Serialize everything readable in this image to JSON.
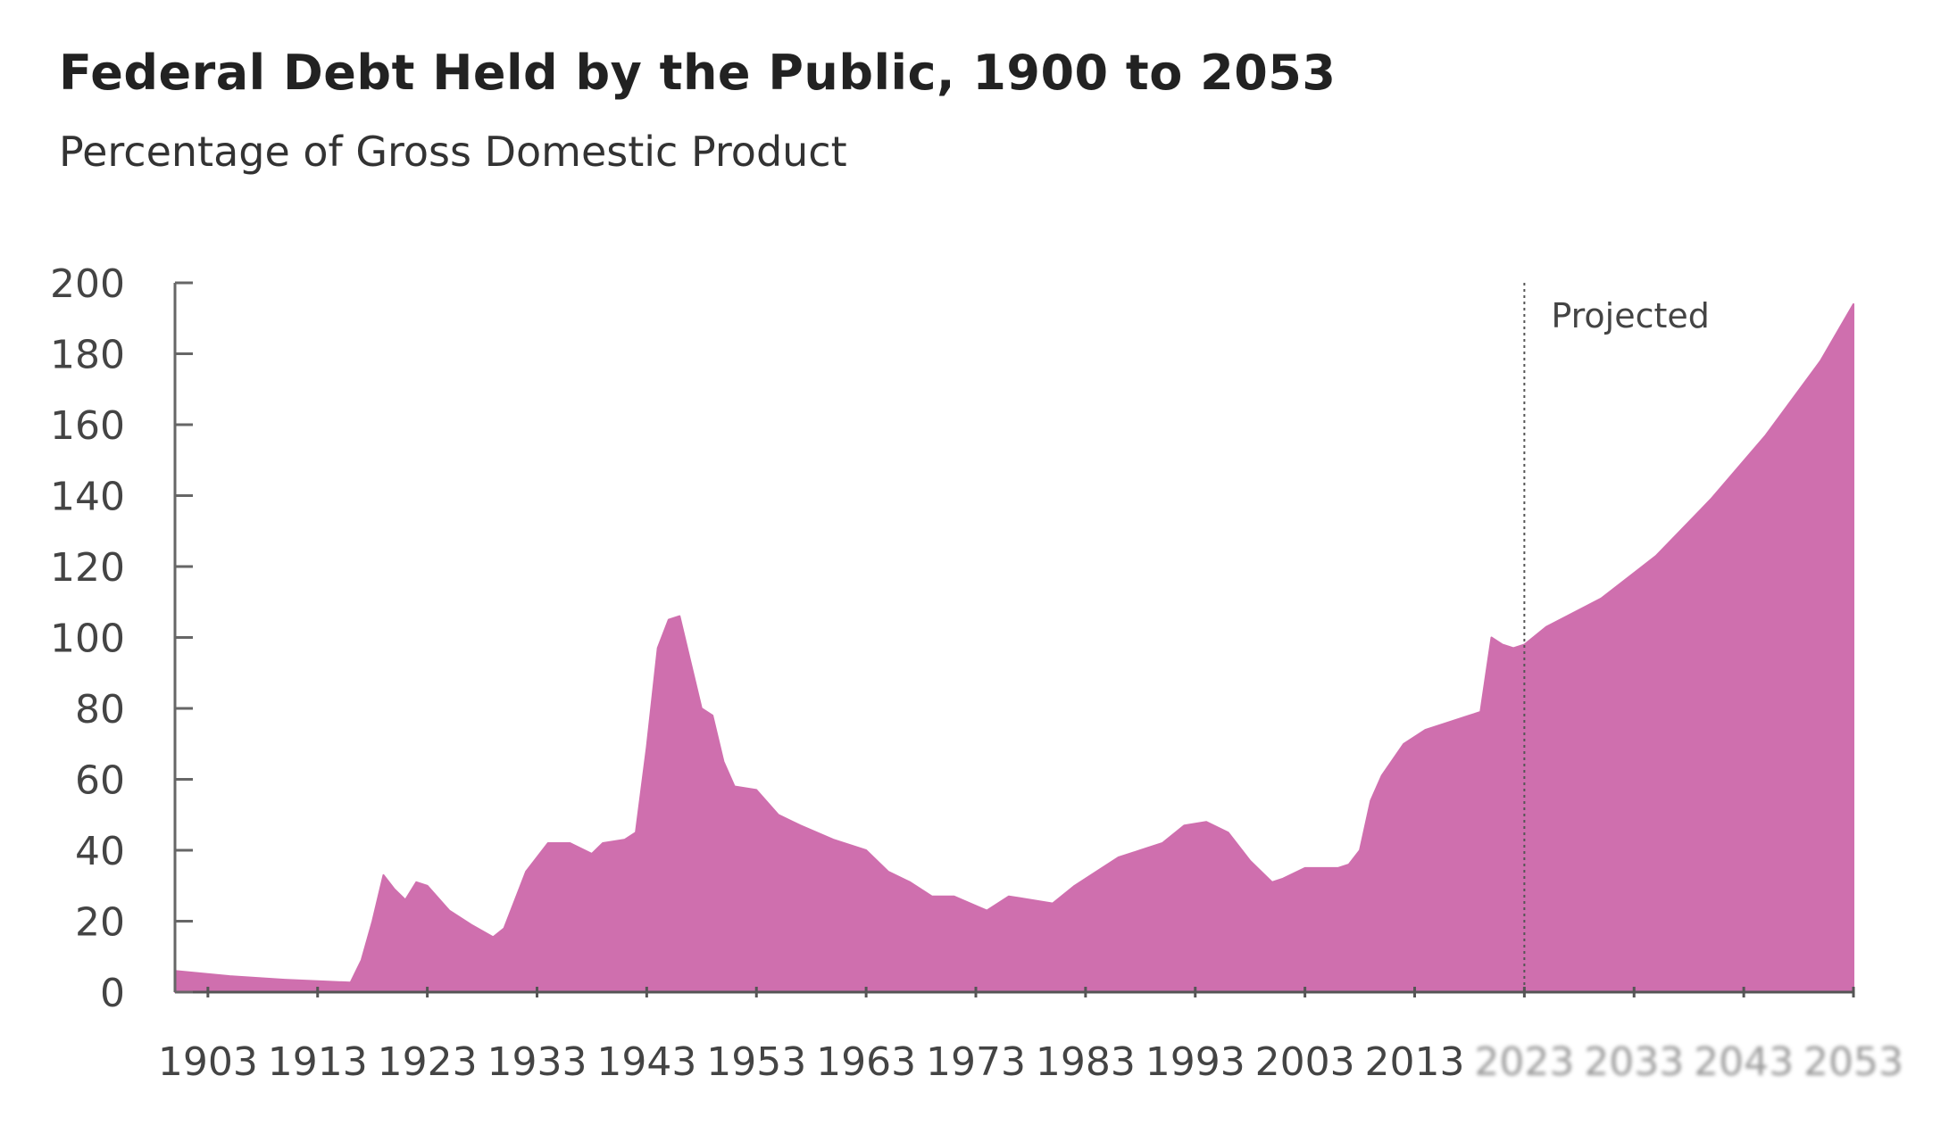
{
  "chart_data": {
    "type": "area",
    "title": "Federal Debt Held by the Public, 1900 to 2053",
    "subtitle": "Percentage of Gross Domestic Product",
    "xlabel": "",
    "ylabel": "",
    "xlim": [
      1900,
      2053
    ],
    "ylim": [
      0,
      200
    ],
    "yticks": [
      0,
      20,
      40,
      60,
      80,
      100,
      120,
      140,
      160,
      180,
      200
    ],
    "xticks": [
      1903,
      1913,
      1923,
      1933,
      1943,
      1953,
      1963,
      1973,
      1983,
      1993,
      2003,
      2013,
      2023,
      2033,
      2043,
      2053
    ],
    "grid": false,
    "color": "#cf6fae",
    "annotation": {
      "label": "Projected",
      "x": 2023
    },
    "x": [
      1900,
      1905,
      1910,
      1916,
      1917,
      1918,
      1919,
      1920,
      1921,
      1922,
      1923,
      1925,
      1927,
      1929,
      1930,
      1932,
      1934,
      1936,
      1938,
      1939,
      1941,
      1942,
      1943,
      1944,
      1945,
      1946,
      1947,
      1948,
      1949,
      1950,
      1951,
      1953,
      1955,
      1957,
      1960,
      1963,
      1965,
      1967,
      1969,
      1971,
      1974,
      1976,
      1978,
      1980,
      1982,
      1984,
      1986,
      1988,
      1990,
      1992,
      1994,
      1996,
      1998,
      2000,
      2001,
      2003,
      2006,
      2007,
      2008,
      2009,
      2010,
      2012,
      2014,
      2016,
      2018,
      2019,
      2020,
      2021,
      2022,
      2023,
      2025,
      2030,
      2035,
      2040,
      2045,
      2050,
      2053
    ],
    "y": [
      6,
      4.5,
      3.5,
      2.7,
      9,
      20,
      33,
      29,
      26,
      31,
      30,
      23,
      19,
      15.5,
      18,
      34,
      42,
      42,
      39,
      42,
      43,
      45,
      69,
      97,
      105,
      106,
      93,
      80,
      78,
      65,
      58,
      57,
      50,
      47,
      43,
      40,
      34,
      31,
      27,
      27,
      23,
      27,
      26,
      25,
      30,
      34,
      38,
      40,
      42,
      47,
      48,
      45,
      37,
      31,
      32,
      35,
      35,
      36,
      40,
      54,
      61,
      70,
      74,
      76,
      78,
      79,
      100,
      98,
      97,
      98,
      103,
      111,
      123,
      139,
      157,
      178,
      194
    ]
  }
}
